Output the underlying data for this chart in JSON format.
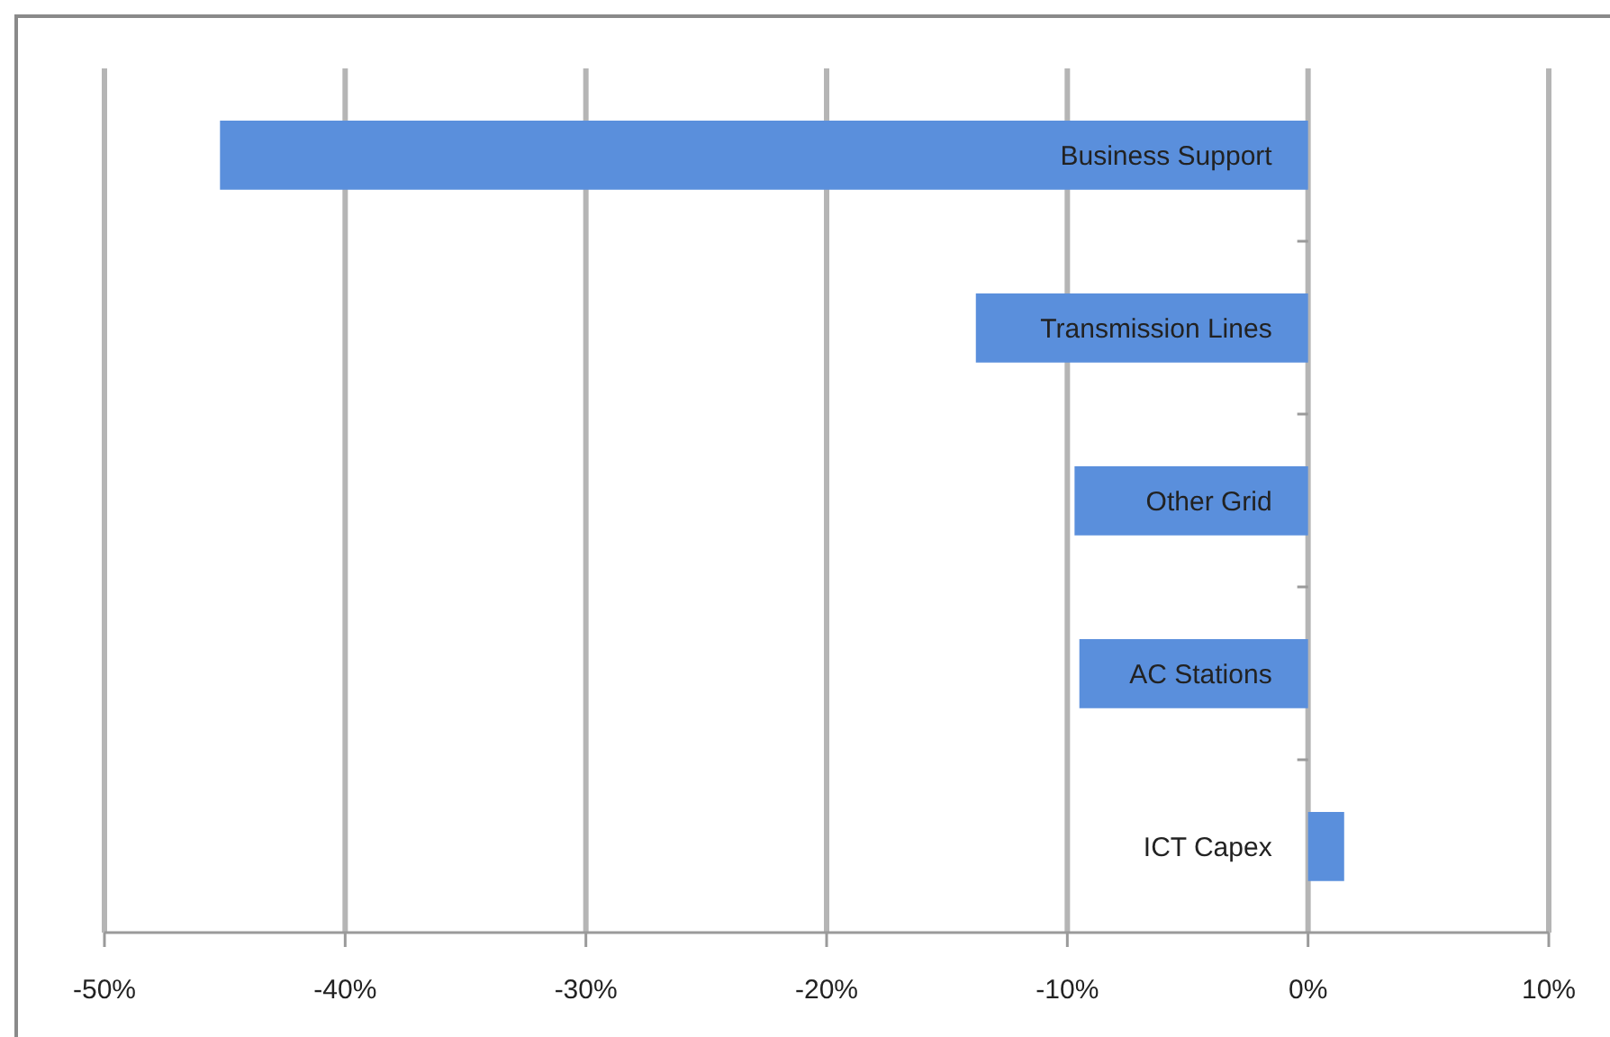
{
  "chart_data": {
    "type": "bar",
    "orientation": "horizontal",
    "categories": [
      "Business Support",
      "Transmission Lines",
      "Other Grid",
      "AC Stations",
      "ICT Capex"
    ],
    "values": [
      -45.2,
      -13.8,
      -9.7,
      -9.5,
      1.5
    ],
    "color": "#5a8fdc",
    "xlim": [
      -50,
      10
    ],
    "xticks": [
      {
        "value": -50,
        "label": "-50%"
      },
      {
        "value": -40,
        "label": "-40%"
      },
      {
        "value": -30,
        "label": "-30%"
      },
      {
        "value": -20,
        "label": "-20%"
      },
      {
        "value": -10,
        "label": "-10%"
      },
      {
        "value": 0,
        "label": "0%"
      },
      {
        "value": 10,
        "label": "10%"
      }
    ],
    "grid": "x"
  }
}
